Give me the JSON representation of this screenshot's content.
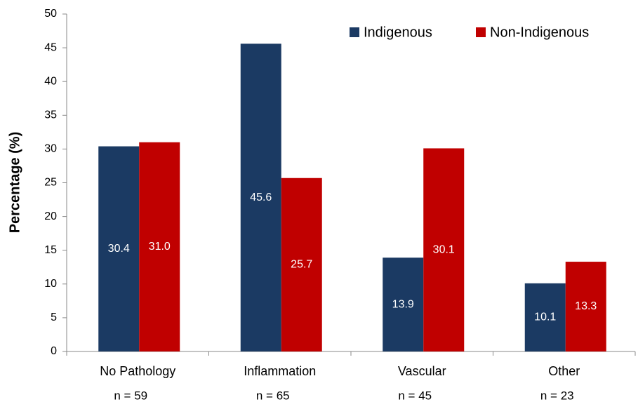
{
  "chart_data": {
    "type": "bar",
    "y_label": "Percentage (%)",
    "categories": [
      "No Pathology",
      "Inflammation",
      "Vascular",
      "Other"
    ],
    "category_notes": [
      "n = 59",
      "n = 65",
      "n = 45",
      "n = 23"
    ],
    "series": [
      {
        "name": "Indigenous",
        "color": "#1b3a63",
        "values": [
          30.4,
          45.6,
          13.9,
          10.1
        ],
        "value_labels": [
          "30.4",
          "45.6",
          "13.9",
          "10.1"
        ]
      },
      {
        "name": "Non-Indigenous",
        "color": "#c00000",
        "values": [
          31.0,
          25.7,
          30.1,
          13.3
        ],
        "value_labels": [
          "31.0",
          "25.7",
          "30.1",
          "13.3"
        ]
      }
    ],
    "ylim": [
      0,
      50
    ],
    "yticks": [
      0,
      5,
      10,
      15,
      20,
      25,
      30,
      35,
      40,
      45,
      50
    ],
    "legend": "top-right",
    "grid": false
  }
}
